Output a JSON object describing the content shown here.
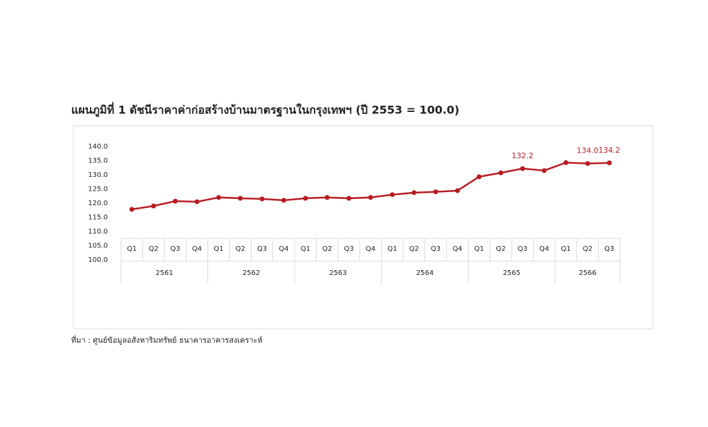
{
  "chart_data": {
    "type": "line",
    "title": "แผนภูมิที่ 1 ดัชนีราคาค่าก่อสร้างบ้านมาตรฐานในกรุงเทพฯ (ปี 2553 = 100.0)",
    "categories": [
      "Q1",
      "Q2",
      "Q3",
      "Q4",
      "Q1",
      "Q2",
      "Q3",
      "Q4",
      "Q1",
      "Q2",
      "Q3",
      "Q4",
      "Q1",
      "Q2",
      "Q3",
      "Q4",
      "Q1",
      "Q2",
      "Q3",
      "Q4",
      "Q1",
      "Q2",
      "Q3"
    ],
    "groups": [
      "2561",
      "2562",
      "2563",
      "2564",
      "2565",
      "2566"
    ],
    "series": [
      {
        "name": "ดัชนีราคาค่าก่อสร้างบ้านมาตรฐาน",
        "color": "#b81c22",
        "values": [
          117.8,
          119.0,
          120.7,
          120.5,
          122.0,
          121.7,
          121.5,
          121.0,
          121.7,
          122.0,
          121.7,
          122.0,
          123.0,
          123.7,
          124.0,
          124.4,
          129.3,
          130.7,
          132.2,
          131.5,
          134.3,
          134.0,
          134.2
        ],
        "value_labels": [
          null,
          null,
          null,
          null,
          null,
          null,
          null,
          null,
          null,
          null,
          null,
          null,
          null,
          null,
          null,
          null,
          null,
          null,
          "132.2",
          null,
          null,
          "134.0",
          "134.2"
        ]
      }
    ],
    "ylim": [
      100,
      140
    ],
    "yticks": [
      {
        "value": 100,
        "label": "100.0"
      },
      {
        "value": 105,
        "label": "105.0"
      },
      {
        "value": 110,
        "label": "110.0"
      },
      {
        "value": 115,
        "label": "115.0"
      },
      {
        "value": 120,
        "label": "120.0"
      },
      {
        "value": 125,
        "label": "125.0"
      },
      {
        "value": 130,
        "label": "130.0"
      },
      {
        "value": 135,
        "label": "135.0"
      },
      {
        "value": 140,
        "label": "140.0"
      }
    ],
    "source": "ที่มา : ศูนย์ข้อมูลอสังหาริมทรัพย์ ธนาคารอาคารสงเคราะห์"
  }
}
